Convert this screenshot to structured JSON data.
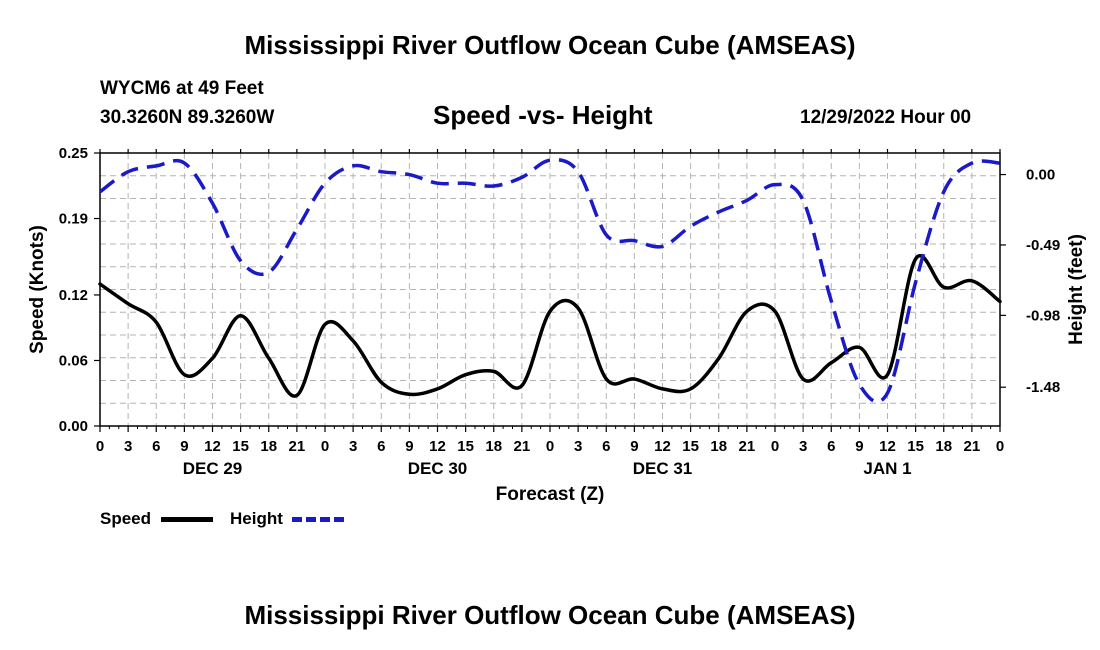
{
  "page": {
    "title": "Mississippi River Outflow Ocean Cube (AMSEAS)",
    "footer_title": "Mississippi River Outflow Ocean Cube (AMSEAS)",
    "station": "WYCM6 at 49 Feet",
    "coords": "30.3260N  89.3260W",
    "subtitle": "Speed -vs- Height",
    "date": "12/29/2022 Hour 00"
  },
  "legend": {
    "speed_label": "Speed",
    "height_label": "Height"
  },
  "colors": {
    "speed": "#000000",
    "height": "#1a1ac8",
    "grid": "#b4b4b4"
  },
  "chart_data": {
    "type": "line",
    "title": "Speed -vs- Height",
    "xlabel": "Forecast (Z)",
    "ylabel": "Speed (Knots)",
    "y2label": "Height (feet)",
    "xlim": [
      0,
      96
    ],
    "ylim": [
      0,
      0.25
    ],
    "y2lim": [
      -1.75,
      0.15
    ],
    "y_ticks": [
      0.0,
      0.06,
      0.12,
      0.19,
      0.25
    ],
    "y_tick_labels": [
      "0.00",
      "0.06",
      "0.12",
      "0.19",
      "0.25"
    ],
    "y2_ticks": [
      0.0,
      -0.49,
      -0.98,
      -1.48
    ],
    "y2_tick_labels": [
      "0.00",
      "-0.49",
      "-0.98",
      "-1.48"
    ],
    "x_tick_labels": [
      "0",
      "3",
      "6",
      "9",
      "12",
      "15",
      "18",
      "21",
      "0",
      "3",
      "6",
      "9",
      "12",
      "15",
      "18",
      "21",
      "0",
      "3",
      "6",
      "9",
      "12",
      "15",
      "18",
      "21",
      "0",
      "3",
      "6",
      "9",
      "12",
      "15",
      "18",
      "21",
      "0"
    ],
    "day_labels": [
      {
        "label": "DEC 29",
        "x": 12
      },
      {
        "label": "DEC 30",
        "x": 36
      },
      {
        "label": "DEC 31",
        "x": 60
      },
      {
        "label": "JAN 1",
        "x": 84
      }
    ],
    "grid": true,
    "series": [
      {
        "name": "Speed",
        "axis": "left",
        "style": "solid",
        "x": [
          0,
          3,
          6,
          9,
          12,
          15,
          18,
          21,
          24,
          27,
          30,
          33,
          36,
          39,
          42,
          45,
          48,
          51,
          54,
          57,
          60,
          63,
          66,
          69,
          72,
          75,
          78,
          81,
          84,
          87,
          90,
          93,
          96
        ],
        "values": [
          0.13,
          0.112,
          0.095,
          0.047,
          0.062,
          0.101,
          0.062,
          0.028,
          0.093,
          0.078,
          0.04,
          0.029,
          0.034,
          0.047,
          0.05,
          0.037,
          0.105,
          0.108,
          0.043,
          0.043,
          0.034,
          0.034,
          0.062,
          0.105,
          0.105,
          0.043,
          0.058,
          0.072,
          0.047,
          0.153,
          0.127,
          0.133,
          0.114
        ]
      },
      {
        "name": "Height",
        "axis": "right",
        "style": "dashed",
        "x": [
          0,
          3,
          6,
          9,
          12,
          15,
          18,
          21,
          24,
          27,
          30,
          33,
          36,
          39,
          42,
          45,
          48,
          51,
          54,
          57,
          60,
          63,
          66,
          69,
          72,
          75,
          78,
          81,
          84,
          87,
          90,
          93,
          96
        ],
        "values": [
          -0.12,
          0.02,
          0.06,
          0.08,
          -0.2,
          -0.6,
          -0.68,
          -0.38,
          -0.06,
          0.06,
          0.02,
          0.0,
          -0.06,
          -0.06,
          -0.08,
          -0.02,
          0.1,
          0.02,
          -0.42,
          -0.46,
          -0.5,
          -0.36,
          -0.26,
          -0.18,
          -0.07,
          -0.18,
          -0.88,
          -1.46,
          -1.52,
          -0.75,
          -0.12,
          0.08,
          0.08
        ]
      }
    ]
  }
}
